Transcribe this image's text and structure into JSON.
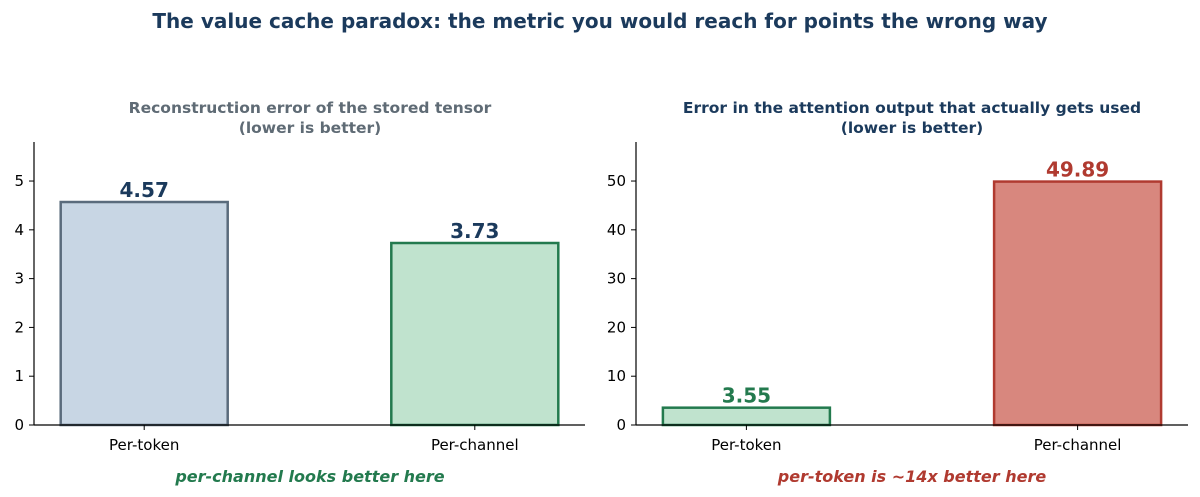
{
  "title": "The value cache paradox: the metric you would reach for points the wrong way",
  "title_color": "#1b3a5c",
  "chart_data": [
    {
      "type": "bar",
      "title_lines": [
        "Reconstruction error of the stored tensor",
        "(lower is better)"
      ],
      "title_color": "#5f6b75",
      "categories": [
        "Per-token",
        "Per-channel"
      ],
      "values": [
        4.57,
        3.73
      ],
      "value_labels": [
        "4.57",
        "3.73"
      ],
      "ylim": [
        0,
        5.8
      ],
      "yticks": [
        0,
        1,
        2,
        3,
        4,
        5
      ],
      "bar_fills": [
        "#c8d6e4",
        "#c0e3ce"
      ],
      "bar_strokes": [
        "#5a6b7c",
        "#237a4e"
      ],
      "label_colors": [
        "#1b3a5c",
        "#1b3a5c"
      ],
      "annotation": "per-channel looks better here",
      "annotation_color": "#237a4e",
      "xlabel": "",
      "ylabel": "",
      "grid": false
    },
    {
      "type": "bar",
      "title_lines": [
        "Error in the attention output that actually gets used",
        "(lower is better)"
      ],
      "title_color": "#1b3a5c",
      "categories": [
        "Per-token",
        "Per-channel"
      ],
      "values": [
        3.55,
        49.89
      ],
      "value_labels": [
        "3.55",
        "49.89"
      ],
      "ylim": [
        0,
        58
      ],
      "yticks": [
        0,
        10,
        20,
        30,
        40,
        50
      ],
      "bar_fills": [
        "#c0e3ce",
        "#d8877e"
      ],
      "bar_strokes": [
        "#237a4e",
        "#b03a30"
      ],
      "label_colors": [
        "#237a4e",
        "#b03a30"
      ],
      "annotation": "per-token is ~14x better here",
      "annotation_color": "#b03a30",
      "xlabel": "",
      "ylabel": "",
      "grid": false
    }
  ]
}
